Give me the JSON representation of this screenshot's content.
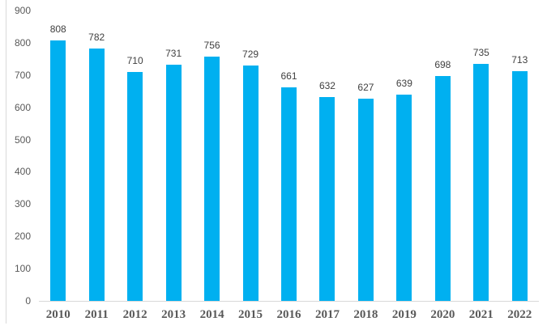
{
  "chart_data": {
    "type": "bar",
    "title": "",
    "xlabel": "",
    "ylabel": "",
    "categories": [
      "2010",
      "2011",
      "2012",
      "2013",
      "2014",
      "2015",
      "2016",
      "2017",
      "2018",
      "2019",
      "2020",
      "2021",
      "2022"
    ],
    "values": [
      808,
      782,
      710,
      731,
      756,
      729,
      661,
      632,
      627,
      639,
      698,
      735,
      713
    ],
    "data_labels": [
      "808",
      "782",
      "710",
      "731",
      "756",
      "729",
      "661",
      "632",
      "627",
      "639",
      "698",
      "735",
      "713"
    ],
    "ylim": [
      0,
      900
    ],
    "ytick_step": 100,
    "ytick_labels": [
      "0",
      "100",
      "200",
      "300",
      "400",
      "500",
      "600",
      "700",
      "800",
      "900"
    ],
    "grid": false,
    "legend": false,
    "colors": {
      "bar": "#00B0F0",
      "axis_line": "#D9D9D9",
      "left_border": "#D9D9D9",
      "data_label": "#404040",
      "y_tick_label": "#595959",
      "x_tick_label": "#595959"
    }
  }
}
